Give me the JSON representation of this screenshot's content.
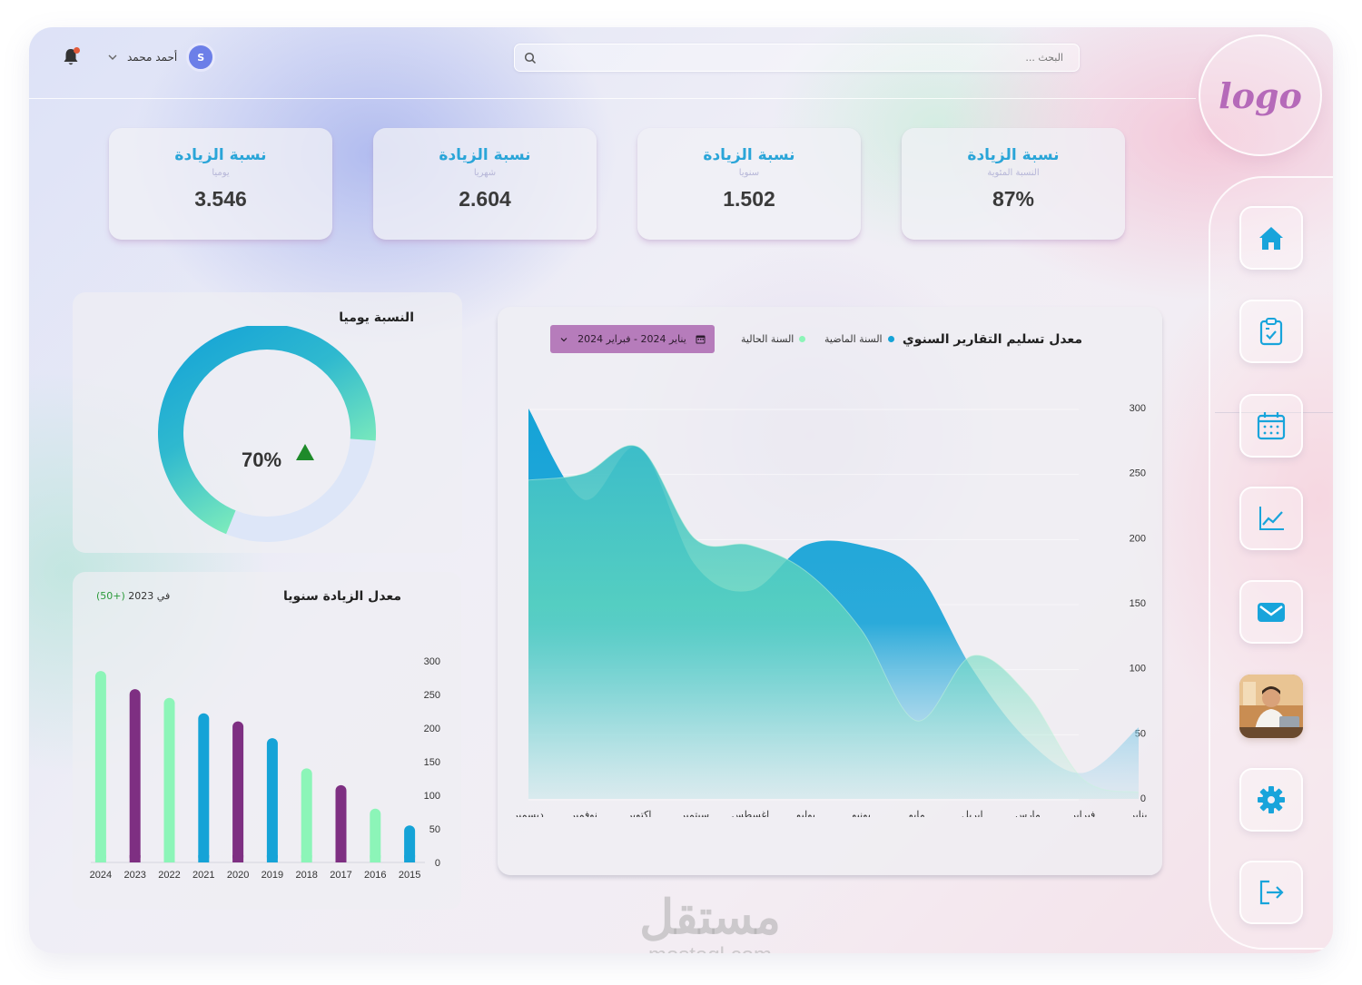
{
  "header": {
    "user_name": "أحمد محمد",
    "avatar_initial": "S",
    "search_placeholder": "البحث ..."
  },
  "logo_text": "logo",
  "nav": [
    {
      "name": "home"
    },
    {
      "name": "tasks"
    },
    {
      "name": "calendar"
    },
    {
      "name": "analytics"
    },
    {
      "name": "messages"
    },
    {
      "name": "profile"
    },
    {
      "name": "settings"
    },
    {
      "name": "logout"
    }
  ],
  "stats": [
    {
      "title": "نسبة الزيادة",
      "subtitle": "يوميا",
      "value": "3.546"
    },
    {
      "title": "نسبة الزيادة",
      "subtitle": "شهريا",
      "value": "2.604"
    },
    {
      "title": "نسبة الزيادة",
      "subtitle": "سنويا",
      "value": "1.502"
    },
    {
      "title": "نسبة الزيادة",
      "subtitle": "النسبة المئوية",
      "value": "87%"
    }
  ],
  "donut": {
    "title": "النسبة يوميا",
    "value_label": "70%",
    "percent": 70
  },
  "bar_panel": {
    "title": "معدل الزيادة سنويا",
    "note_value": "(50+)",
    "note_text": " في 2023"
  },
  "area_panel": {
    "title": "معدل تسليم التقارير السنوي",
    "legend_last": "السنة الماضية",
    "legend_current": "السنة الحالية",
    "date_range": "يناير 2024 - فبراير 2024"
  },
  "colors": {
    "blue": "#15a3d7",
    "green": "#8cf5b8",
    "purple": "#7e2f82",
    "accent": "#2aa5d8",
    "pill": "#b67cbb"
  },
  "chart_data": [
    {
      "type": "bar",
      "categories": [
        "2015",
        "2016",
        "2017",
        "2018",
        "2019",
        "2020",
        "2021",
        "2022",
        "2023",
        "2024"
      ],
      "values": [
        55,
        80,
        115,
        140,
        185,
        210,
        222,
        245,
        258,
        285
      ],
      "bar_colors": [
        "blue",
        "green",
        "purple",
        "green",
        "blue",
        "purple",
        "blue",
        "green",
        "purple",
        "green"
      ],
      "y_ticks": [
        "0",
        "50",
        "100",
        "150",
        "200",
        "250",
        "300"
      ],
      "ylim": [
        0,
        300
      ]
    },
    {
      "type": "area",
      "categories": [
        "يناير",
        "فبراير",
        "مارس",
        "ابريل",
        "مايو",
        "يونيو",
        "يوليو",
        "اغسطس",
        "سبتمبر",
        "اكتوبر",
        "نوفمبر",
        "ديسمبر"
      ],
      "y_ticks": [
        "0",
        "50",
        "100",
        "150",
        "200",
        "250",
        "300"
      ],
      "ylim": [
        0,
        300
      ],
      "series": [
        {
          "name": "السنة الماضية",
          "color": "#15a3d7",
          "values": [
            55,
            20,
            45,
            100,
            175,
            195,
            195,
            160,
            180,
            270,
            230,
            300
          ]
        },
        {
          "name": "السنة الحالية",
          "color": "#8cf5b8",
          "values": [
            5,
            15,
            80,
            110,
            60,
            130,
            175,
            195,
            200,
            270,
            250,
            245
          ]
        }
      ]
    }
  ]
}
